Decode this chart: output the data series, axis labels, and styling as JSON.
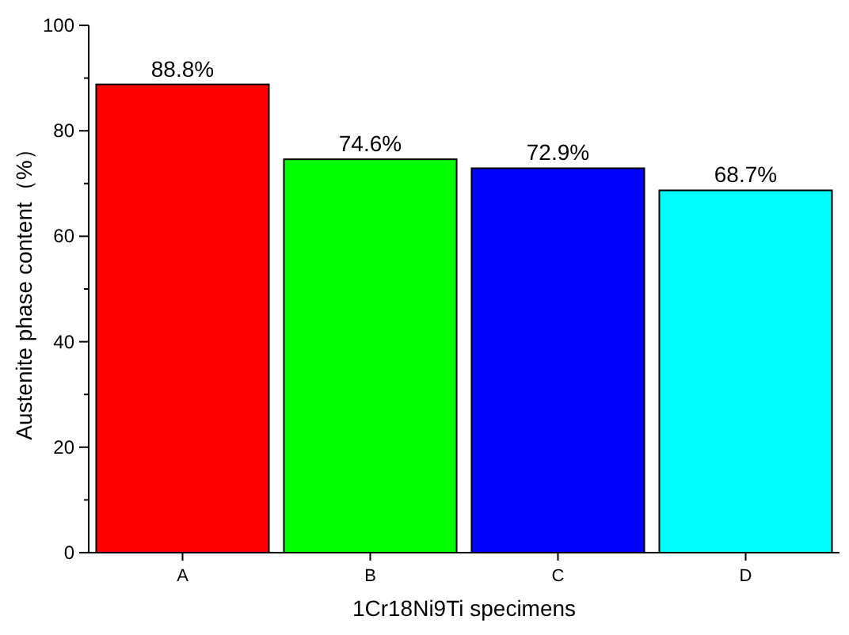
{
  "chart_data": {
    "type": "bar",
    "xlabel": "1Cr18Ni9Ti specimens",
    "ylabel": "Austenite phase content（%）",
    "categories": [
      "A",
      "B",
      "C",
      "D"
    ],
    "values": [
      88.8,
      74.6,
      72.9,
      68.7
    ],
    "colors": [
      "#ff0000",
      "#00ff00",
      "#0000ff",
      "#00ffff"
    ],
    "value_labels": [
      "88.8%",
      "74.6%",
      "72.9%",
      "68.7%"
    ],
    "ylim": [
      0,
      100
    ],
    "yticks": [
      0,
      20,
      40,
      60,
      80,
      100
    ]
  }
}
